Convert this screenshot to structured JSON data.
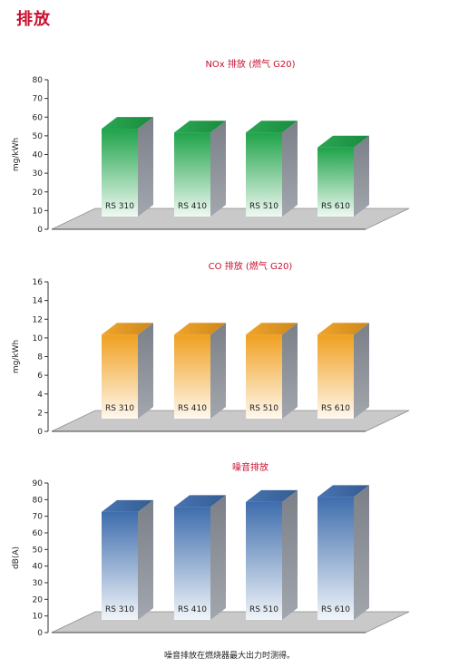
{
  "page": {
    "title": "排放",
    "footnote": "噪音排放在燃烧器最大出力时测得。"
  },
  "colors": {
    "title": "#c8102e",
    "green": "#1fa34a",
    "orange": "#f0a020",
    "blue": "#3e6dad",
    "platform": "#c9c9c9"
  },
  "chart_data": [
    {
      "type": "bar",
      "title": "NOx 排放 (燃气 G20)",
      "ylabel": "mg/kWh",
      "categories": [
        "RS 310",
        "RS 410",
        "RS 510",
        "RS 610"
      ],
      "values": [
        47,
        45,
        45,
        37
      ],
      "ylim": [
        0,
        80
      ],
      "yticks": [
        0,
        10,
        20,
        30,
        40,
        50,
        60,
        70,
        80
      ],
      "color": "green",
      "grid": false
    },
    {
      "type": "bar",
      "title": "CO 排放 (燃气 G20)",
      "ylabel": "mg/kWh",
      "categories": [
        "RS 310",
        "RS 410",
        "RS 510",
        "RS 610"
      ],
      "values": [
        9,
        9,
        9,
        9
      ],
      "ylim": [
        0,
        16
      ],
      "yticks": [
        0,
        2,
        4,
        6,
        8,
        10,
        12,
        14,
        16
      ],
      "color": "orange",
      "grid": false
    },
    {
      "type": "bar",
      "title": "噪音排放",
      "ylabel": "dB(A)",
      "categories": [
        "RS 310",
        "RS 410",
        "RS 510",
        "RS 610"
      ],
      "values": [
        65,
        68,
        71,
        74
      ],
      "ylim": [
        0,
        90
      ],
      "yticks": [
        0,
        10,
        20,
        30,
        40,
        50,
        60,
        70,
        80,
        90
      ],
      "color": "blue",
      "grid": false
    }
  ]
}
